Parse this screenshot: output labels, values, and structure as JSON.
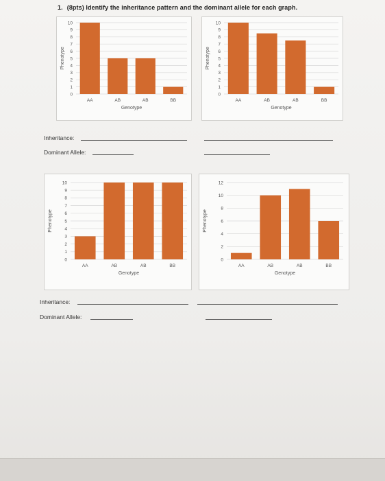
{
  "worksheet": {
    "question_number": "1.",
    "question_text": "(8pts) Identify the inheritance pattern and the dominant allele for each graph.",
    "inheritance_label": "Inheritance:",
    "dominant_allele_label": "Dominant Allele:"
  },
  "chart_data": [
    {
      "type": "bar",
      "categories": [
        "AA",
        "AB",
        "AB",
        "BB"
      ],
      "values": [
        10,
        5,
        5,
        1
      ],
      "xlabel": "Genotype",
      "ylabel": "Phenotype",
      "ylim": [
        0,
        10
      ],
      "yticks": [
        0,
        1,
        2,
        3,
        4,
        5,
        6,
        7,
        8,
        9,
        10
      ],
      "bar_color": "#d26a2e"
    },
    {
      "type": "bar",
      "categories": [
        "AA",
        "AB",
        "AB",
        "BB"
      ],
      "values": [
        10,
        8.5,
        7.5,
        1
      ],
      "xlabel": "Genotype",
      "ylabel": "Phenotype",
      "ylim": [
        0,
        10
      ],
      "yticks": [
        0,
        1,
        2,
        3,
        4,
        5,
        6,
        7,
        8,
        9,
        10
      ],
      "bar_color": "#d26a2e"
    },
    {
      "type": "bar",
      "categories": [
        "AA",
        "AB",
        "AB",
        "BB"
      ],
      "values": [
        3,
        10,
        10,
        10
      ],
      "xlabel": "Genotype",
      "ylabel": "Phenotype",
      "ylim": [
        0,
        10
      ],
      "yticks": [
        0,
        1,
        2,
        3,
        4,
        5,
        6,
        7,
        8,
        9,
        10
      ],
      "bar_color": "#d26a2e"
    },
    {
      "type": "bar",
      "categories": [
        "AA",
        "AB",
        "AB",
        "BB"
      ],
      "values": [
        1,
        10,
        11,
        6
      ],
      "xlabel": "Genotype",
      "ylabel": "Phenotype",
      "ylim": [
        0,
        12
      ],
      "yticks": [
        0,
        2,
        4,
        6,
        8,
        10,
        12
      ],
      "bar_color": "#d26a2e"
    }
  ]
}
